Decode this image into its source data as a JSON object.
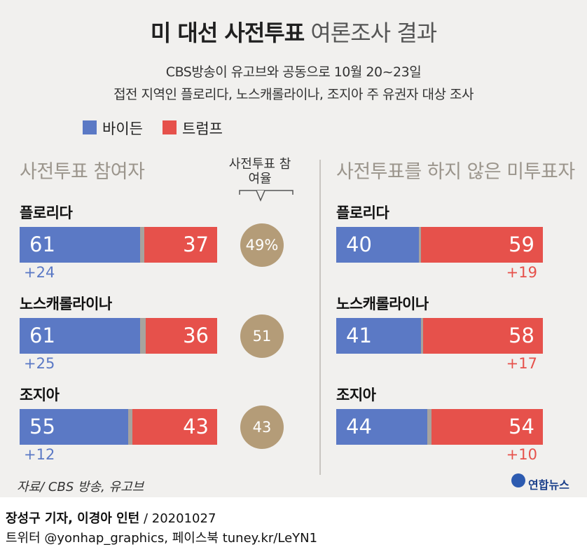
{
  "header": {
    "title_bold": "미 대선 사전투표",
    "title_light": "여론조사 결과",
    "subtitle_1": "CBS방송이 유고브와 공동으로 10월 20~23일",
    "subtitle_2": "접전 지역인 플로리다, 노스캐롤라이나, 조지아 주 유권자 대상 조사"
  },
  "legend": [
    {
      "label": "바이든",
      "color": "#5b79c5"
    },
    {
      "label": "트럼프",
      "color": "#e6514b"
    }
  ],
  "chart_data": [
    {
      "type": "bar",
      "title": "사전투표 참여자",
      "categories": [
        "플로리다",
        "노스캐롤라이나",
        "조지아"
      ],
      "series": [
        {
          "name": "바이든",
          "values": [
            61,
            61,
            55
          ]
        },
        {
          "name": "트럼프",
          "values": [
            37,
            36,
            43
          ]
        }
      ],
      "margins": [
        "+24",
        "+25",
        "+12"
      ],
      "turnout_label": "사전투표 참여율",
      "turnout": [
        "49%",
        "51",
        "43"
      ]
    },
    {
      "type": "bar",
      "title": "사전투표를 하지 않은 미투표자",
      "categories": [
        "플로리다",
        "노스캐롤라이나",
        "조지아"
      ],
      "series": [
        {
          "name": "바이든",
          "values": [
            40,
            41,
            44
          ]
        },
        {
          "name": "트럼프",
          "values": [
            59,
            58,
            54
          ]
        }
      ],
      "margins": [
        "+19",
        "+17",
        "+10"
      ]
    }
  ],
  "source": "자료/ CBS 방송, 유고브",
  "logo": "연합뉴스",
  "footer": {
    "credit": "장성구 기자, 이경아 인턴",
    "date": "20201027",
    "social": "트위터 @yonhap_graphics, 페이스북 tuney.kr/LeYN1"
  }
}
